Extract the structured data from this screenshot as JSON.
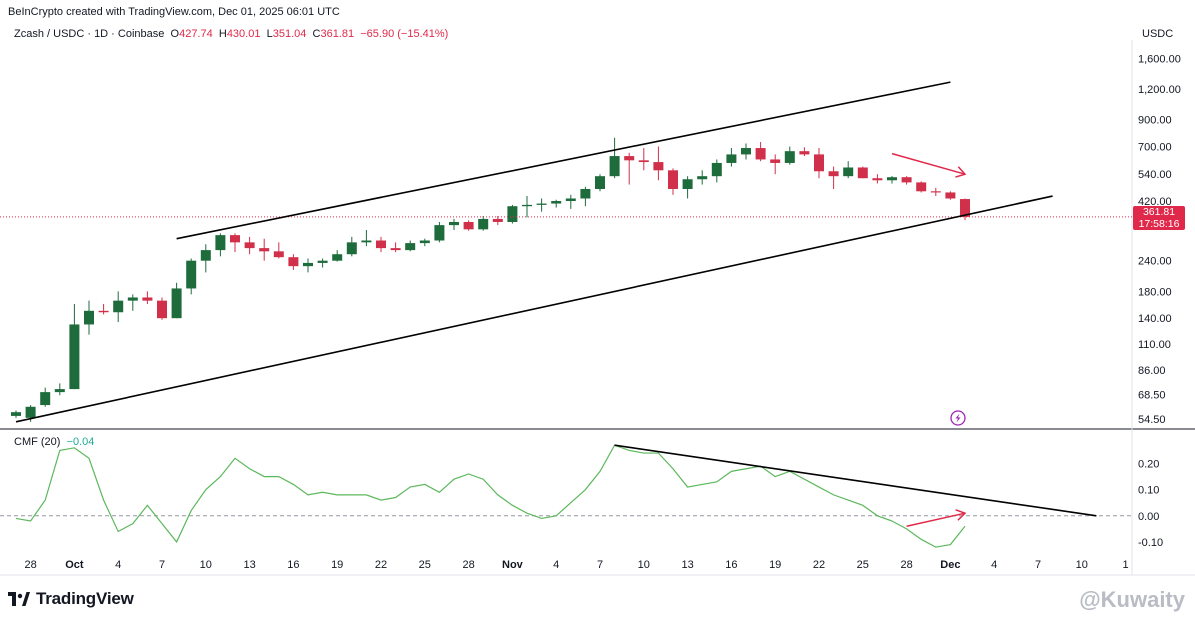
{
  "header": {
    "source_line": "BeInCrypto created with TradingView.com, Dec 01, 2025 06:01 UTC"
  },
  "legend": {
    "symbol": "Zcash / USDC · 1D · Coinbase",
    "o_label": "O",
    "o_value": "427.74",
    "h_label": "H",
    "h_value": "430.01",
    "l_label": "L",
    "l_value": "351.04",
    "c_label": "C",
    "c_value": "361.81",
    "change": "−65.90 (−15.41%)"
  },
  "currency": "USDC",
  "last_price": {
    "value": "361.81",
    "countdown": "17:58:16"
  },
  "indicator": {
    "name": "CMF (20)",
    "value": "−0.04"
  },
  "footer": {
    "brand": "TradingView",
    "watermark": "@Kuwaity"
  },
  "colors": {
    "up": "#1e6b3c",
    "down": "#d1304a",
    "cmf_line": "#5cb85c",
    "trendline": "#000000",
    "arrow": "#e0294a",
    "last_price_tag": "#e0294a"
  },
  "chart_data": [
    {
      "type": "candlestick",
      "title": "Zcash / USDC · 1D · Coinbase",
      "ylabel": "USDC",
      "y_scale": "log",
      "ylim": [
        50,
        1900
      ],
      "y_ticks": [
        "1,600.00",
        "1,200.00",
        "900.00",
        "700.00",
        "540.00",
        "420.00",
        "240.00",
        "180.00",
        "140.00",
        "110.00",
        "86.00",
        "68.50",
        "54.50"
      ],
      "x_ticks": [
        "28",
        "Oct",
        "4",
        "7",
        "10",
        "13",
        "16",
        "19",
        "22",
        "25",
        "28",
        "Nov",
        "4",
        "7",
        "10",
        "13",
        "16",
        "19",
        "22",
        "25",
        "28",
        "Dec",
        "4",
        "7",
        "10",
        "1"
      ],
      "ohlc": [
        [
          56,
          59,
          55,
          58
        ],
        [
          55,
          62,
          53,
          61
        ],
        [
          62,
          73,
          61,
          70
        ],
        [
          70,
          76,
          68,
          72
        ],
        [
          72,
          160,
          72,
          132
        ],
        [
          132,
          165,
          120,
          150
        ],
        [
          150,
          160,
          145,
          148
        ],
        [
          148,
          180,
          135,
          165
        ],
        [
          165,
          175,
          150,
          170
        ],
        [
          170,
          180,
          160,
          165
        ],
        [
          165,
          170,
          138,
          140
        ],
        [
          140,
          195,
          140,
          185
        ],
        [
          185,
          245,
          175,
          240
        ],
        [
          240,
          280,
          215,
          265
        ],
        [
          265,
          310,
          250,
          305
        ],
        [
          305,
          310,
          260,
          285
        ],
        [
          285,
          300,
          255,
          270
        ],
        [
          270,
          295,
          240,
          262
        ],
        [
          262,
          285,
          245,
          248
        ],
        [
          248,
          255,
          220,
          228
        ],
        [
          228,
          245,
          215,
          235
        ],
        [
          235,
          245,
          225,
          240
        ],
        [
          240,
          265,
          238,
          255
        ],
        [
          255,
          300,
          250,
          285
        ],
        [
          285,
          320,
          275,
          290
        ],
        [
          290,
          300,
          260,
          270
        ],
        [
          270,
          285,
          260,
          265
        ],
        [
          265,
          290,
          262,
          283
        ],
        [
          283,
          295,
          275,
          290
        ],
        [
          290,
          345,
          285,
          335
        ],
        [
          335,
          355,
          320,
          345
        ],
        [
          345,
          350,
          318,
          322
        ],
        [
          322,
          365,
          318,
          355
        ],
        [
          355,
          365,
          335,
          345
        ],
        [
          345,
          405,
          340,
          400
        ],
        [
          400,
          440,
          360,
          405
        ],
        [
          405,
          430,
          380,
          410
        ],
        [
          410,
          425,
          395,
          420
        ],
        [
          420,
          445,
          390,
          430
        ],
        [
          430,
          480,
          400,
          470
        ],
        [
          470,
          540,
          460,
          530
        ],
        [
          530,
          760,
          520,
          640
        ],
        [
          640,
          660,
          490,
          615
        ],
        [
          615,
          690,
          560,
          605
        ],
        [
          605,
          700,
          510,
          560
        ],
        [
          560,
          570,
          445,
          470
        ],
        [
          470,
          530,
          430,
          515
        ],
        [
          515,
          560,
          490,
          530
        ],
        [
          530,
          620,
          500,
          600
        ],
        [
          600,
          690,
          580,
          650
        ],
        [
          650,
          720,
          620,
          690
        ],
        [
          690,
          730,
          610,
          620
        ],
        [
          620,
          650,
          540,
          600
        ],
        [
          600,
          700,
          590,
          670
        ],
        [
          670,
          695,
          640,
          650
        ],
        [
          650,
          690,
          520,
          555
        ],
        [
          555,
          580,
          470,
          530
        ],
        [
          530,
          610,
          520,
          575
        ],
        [
          575,
          580,
          520,
          520
        ],
        [
          520,
          540,
          495,
          510
        ],
        [
          510,
          530,
          495,
          525
        ],
        [
          525,
          530,
          490,
          500
        ],
        [
          500,
          505,
          455,
          460
        ],
        [
          460,
          475,
          440,
          455
        ],
        [
          455,
          460,
          425,
          430
        ],
        [
          427.74,
          430.01,
          351.04,
          361.81
        ]
      ],
      "annotations": [
        {
          "type": "trendline",
          "label": "channel top",
          "from": [
            11,
            295
          ],
          "to": [
            64,
            1280
          ]
        },
        {
          "type": "trendline",
          "label": "channel bottom",
          "from": [
            0,
            53
          ],
          "to": [
            71,
            440
          ]
        },
        {
          "type": "arrow",
          "label": "down arrow",
          "from": [
            60,
            655
          ],
          "to": [
            65,
            540
          ]
        }
      ]
    },
    {
      "type": "line",
      "title": "CMF (20)",
      "name": "CMF (20)",
      "ylim": [
        -0.15,
        0.29
      ],
      "y_ticks": [
        "0.20",
        "0.10",
        "0.00",
        "-0.10"
      ],
      "values": [
        -0.01,
        -0.02,
        0.06,
        0.25,
        0.26,
        0.22,
        0.06,
        -0.06,
        -0.03,
        0.04,
        -0.03,
        -0.1,
        0.02,
        0.1,
        0.15,
        0.22,
        0.18,
        0.15,
        0.15,
        0.12,
        0.08,
        0.09,
        0.08,
        0.08,
        0.08,
        0.06,
        0.07,
        0.11,
        0.12,
        0.09,
        0.14,
        0.16,
        0.14,
        0.08,
        0.04,
        0.01,
        -0.01,
        0.0,
        0.05,
        0.1,
        0.17,
        0.27,
        0.25,
        0.24,
        0.24,
        0.18,
        0.11,
        0.12,
        0.13,
        0.17,
        0.18,
        0.19,
        0.15,
        0.17,
        0.14,
        0.11,
        0.08,
        0.06,
        0.04,
        0.0,
        -0.02,
        -0.05,
        -0.09,
        -0.12,
        -0.11,
        -0.04
      ],
      "annotations": [
        {
          "type": "trendline",
          "label": "CMF descending",
          "from": [
            41,
            0.27
          ],
          "to": [
            74,
            0.0
          ]
        },
        {
          "type": "arrow",
          "label": "up arrow",
          "from": [
            61,
            -0.04
          ],
          "to": [
            65,
            0.01
          ]
        }
      ]
    }
  ]
}
